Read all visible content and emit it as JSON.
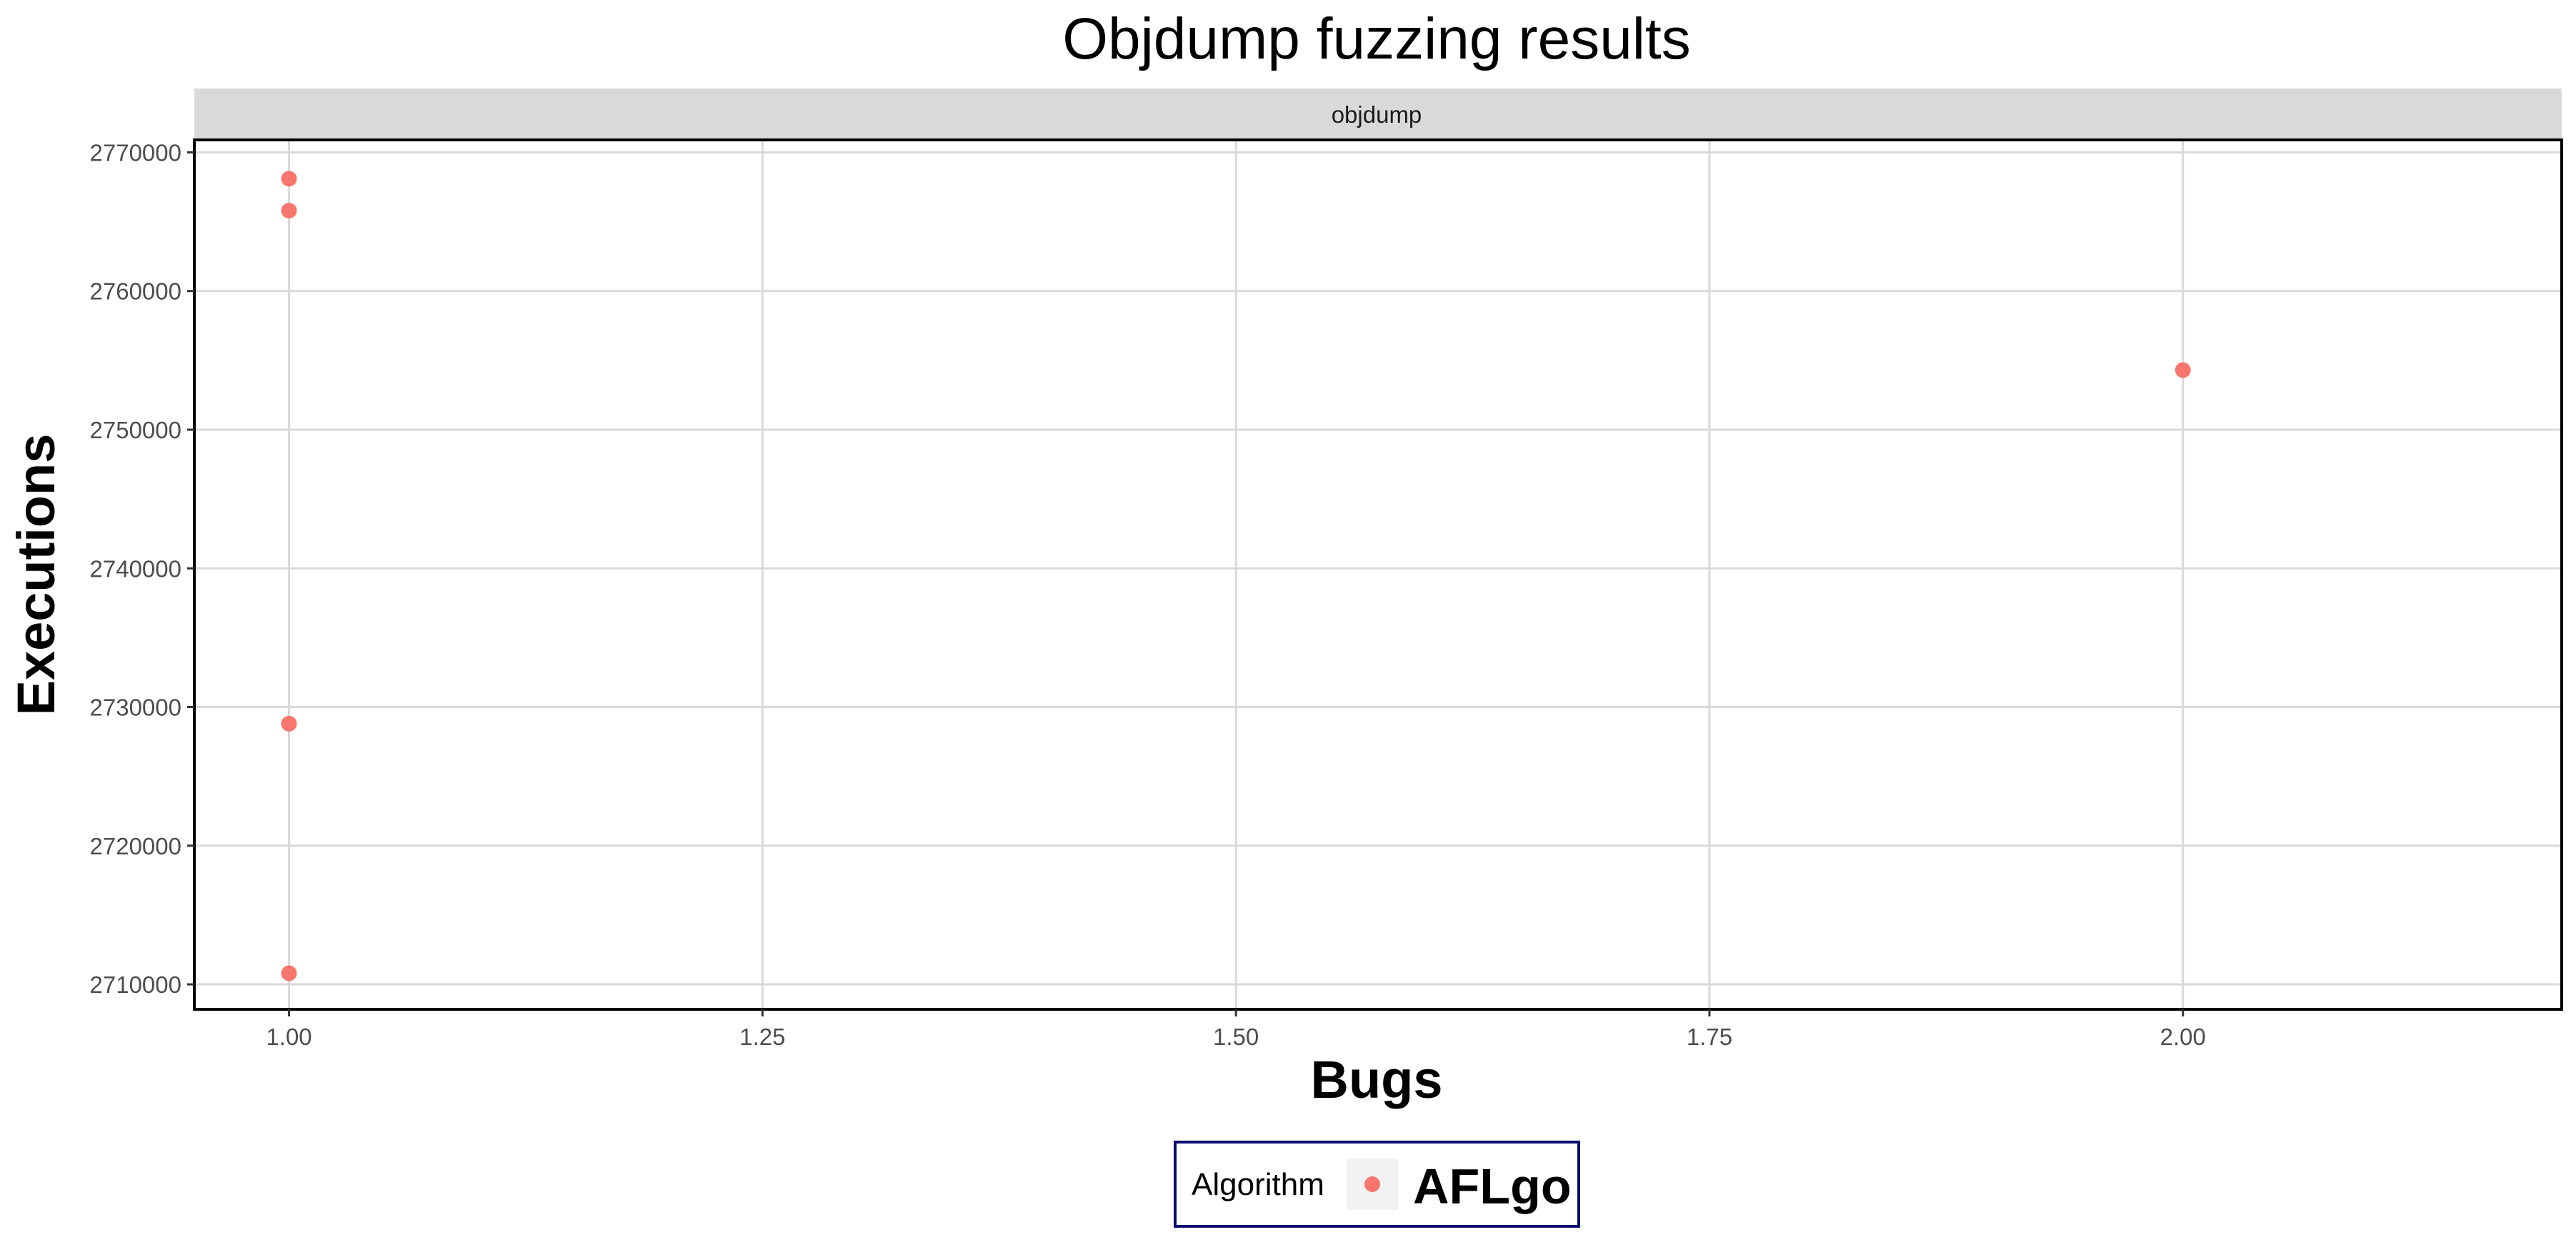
{
  "chart_data": {
    "type": "scatter",
    "title": "Objdump fuzzing results",
    "facet": "objdump",
    "xlabel": "Bugs",
    "ylabel": "Executions",
    "xlim": [
      0.95,
      2.2
    ],
    "ylim": [
      2708200,
      2770900
    ],
    "x_ticks": [
      1.0,
      1.25,
      1.5,
      1.75,
      2.0
    ],
    "x_tick_labels": [
      "1.00",
      "1.25",
      "1.50",
      "1.75",
      "2.00"
    ],
    "y_ticks": [
      2710000,
      2720000,
      2730000,
      2740000,
      2750000,
      2760000,
      2770000
    ],
    "y_tick_labels": [
      "2710000",
      "2720000",
      "2730000",
      "2740000",
      "2750000",
      "2760000",
      "2770000"
    ],
    "grid": true,
    "legend": {
      "title": "Algorithm",
      "position": "bottom"
    },
    "series": [
      {
        "name": "AFLgo",
        "color": "#f8766d",
        "points": [
          {
            "x": 1.0,
            "y": 2768100
          },
          {
            "x": 1.0,
            "y": 2765800
          },
          {
            "x": 1.0,
            "y": 2728800
          },
          {
            "x": 1.0,
            "y": 2710800
          },
          {
            "x": 2.0,
            "y": 2754300
          }
        ]
      }
    ]
  }
}
